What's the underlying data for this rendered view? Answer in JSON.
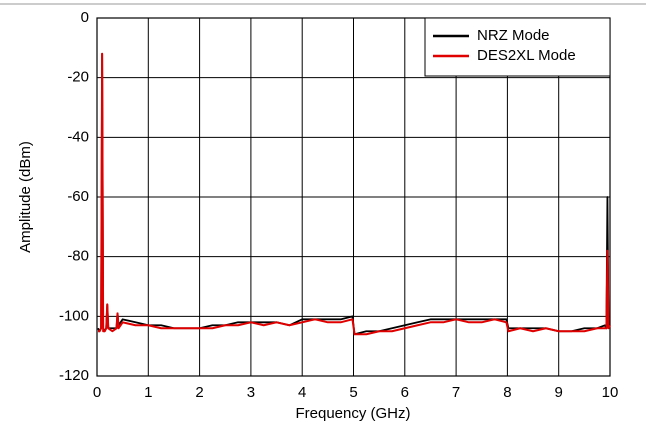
{
  "chart_data": {
    "type": "line",
    "xlabel": "Frequency (GHz)",
    "ylabel": "Amplitude (dBm)",
    "x": [
      0.02,
      0.05,
      0.08,
      0.1,
      0.12,
      0.15,
      0.18,
      0.2,
      0.22,
      0.3,
      0.38,
      0.4,
      0.42,
      0.5,
      0.75,
      1,
      1.25,
      1.5,
      1.75,
      2,
      2.25,
      2.5,
      2.75,
      3,
      3.25,
      3.5,
      3.75,
      4,
      4.25,
      4.5,
      4.75,
      4.98,
      5.02,
      5.25,
      5.5,
      5.75,
      6,
      6.25,
      6.5,
      6.75,
      7,
      7.25,
      7.5,
      7.75,
      7.98,
      8.02,
      8.25,
      8.5,
      8.75,
      9,
      9.25,
      9.5,
      9.75,
      9.9,
      9.93,
      9.95,
      9.97,
      10
    ],
    "series": [
      {
        "name": "NRZ Mode",
        "color": "#000000",
        "values": [
          -104,
          -105,
          -104,
          -12,
          -104,
          -105,
          -104,
          -96,
          -104,
          -104,
          -104,
          -99,
          -103,
          -101,
          -102,
          -103,
          -103,
          -104,
          -104,
          -104,
          -103,
          -103,
          -102,
          -102,
          -102,
          -102,
          -103,
          -101,
          -101,
          -101,
          -101,
          -100,
          -106,
          -105,
          -105,
          -104,
          -103,
          -102,
          -101,
          -101,
          -101,
          -101,
          -101,
          -101,
          -101,
          -104,
          -104,
          -104,
          -104,
          -105,
          -105,
          -104,
          -104,
          -103,
          -104,
          -60,
          -103,
          -103
        ]
      },
      {
        "name": "DES2XL Mode",
        "color": "#e00000",
        "values": [
          -105,
          -105,
          -104,
          -12,
          -105,
          -105,
          -104,
          -96,
          -104,
          -105,
          -104,
          -99,
          -104,
          -102,
          -103,
          -103,
          -104,
          -104,
          -104,
          -104,
          -104,
          -103,
          -103,
          -102,
          -103,
          -102,
          -103,
          -102,
          -101,
          -102,
          -102,
          -101,
          -106,
          -106,
          -105,
          -105,
          -104,
          -103,
          -102,
          -102,
          -101,
          -102,
          -102,
          -101,
          -102,
          -105,
          -104,
          -105,
          -104,
          -105,
          -105,
          -105,
          -104,
          -104,
          -104,
          -78,
          -104,
          -103
        ]
      }
    ],
    "xlim": [
      0,
      10
    ],
    "xticks": [
      0,
      1,
      2,
      3,
      4,
      5,
      6,
      7,
      8,
      9,
      10
    ],
    "ylim": [
      -120,
      0
    ],
    "yticks": [
      -120,
      -100,
      -80,
      -60,
      -40,
      -20,
      0
    ],
    "grid": true,
    "legend": "upper right"
  }
}
